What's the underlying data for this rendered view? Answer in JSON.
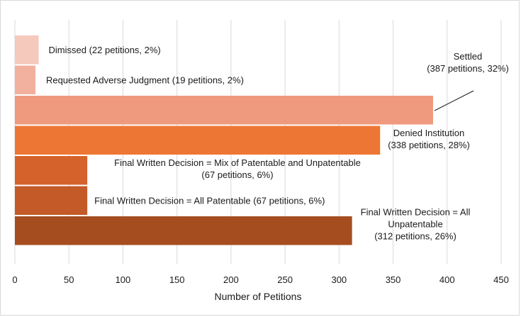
{
  "chart_data": {
    "type": "bar",
    "orientation": "horizontal",
    "xlabel": "Number of Petitions",
    "ylabel": "",
    "xlim": [
      0,
      450
    ],
    "xticks": [
      0,
      50,
      100,
      150,
      200,
      250,
      300,
      350,
      400,
      450
    ],
    "grid": "vertical",
    "legend": "none",
    "bars": [
      {
        "value": 22,
        "label_lines": [
          "Dimissed (22 petitions, 2%)"
        ],
        "color": "#f6c9bd"
      },
      {
        "value": 19,
        "label_lines": [
          "Requested Adverse Judgment (19 petitions, 2%)"
        ],
        "color": "#f2b09e"
      },
      {
        "value": 387,
        "label_lines": [
          "Settled",
          "(387 petitions, 32%)"
        ],
        "color": "#ef9a7e"
      },
      {
        "value": 338,
        "label_lines": [
          "Denied Institution",
          "(338 petitions, 28%)"
        ],
        "color": "#ed7634"
      },
      {
        "value": 67,
        "label_lines": [
          "Final Written Decision = Mix of Patentable and Unpatentable",
          "(67 petitions, 6%)"
        ],
        "color": "#d6622b"
      },
      {
        "value": 67,
        "label_lines": [
          "Final Written Decision = All Patentable (67 petitions, 6%)"
        ],
        "color": "#c45a28"
      },
      {
        "value": 312,
        "label_lines": [
          "Final Written Decision = All",
          "Unpatentable",
          "(312 petitions, 26%)"
        ],
        "color": "#a64d20"
      }
    ]
  }
}
